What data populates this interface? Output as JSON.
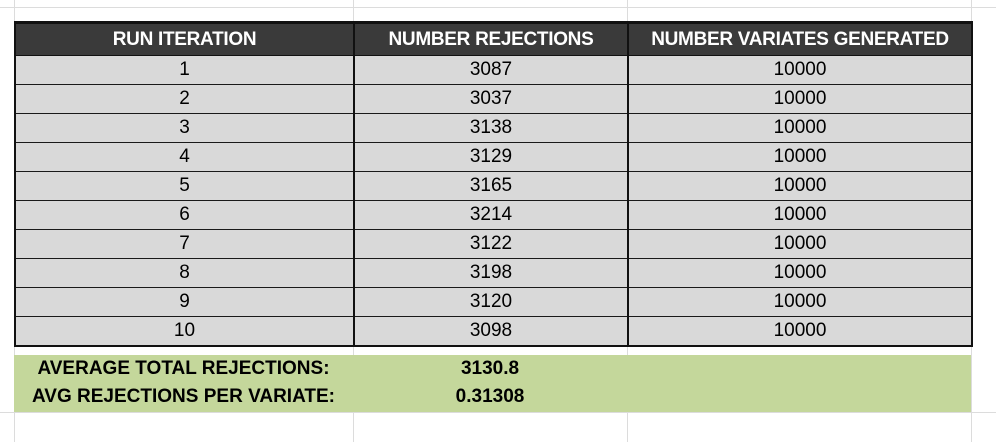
{
  "table": {
    "headers": [
      "RUN ITERATION",
      "NUMBER REJECTIONS",
      "NUMBER VARIATES GENERATED"
    ],
    "rows": [
      [
        "1",
        "3087",
        "10000"
      ],
      [
        "2",
        "3037",
        "10000"
      ],
      [
        "3",
        "3138",
        "10000"
      ],
      [
        "4",
        "3129",
        "10000"
      ],
      [
        "5",
        "3165",
        "10000"
      ],
      [
        "6",
        "3214",
        "10000"
      ],
      [
        "7",
        "3122",
        "10000"
      ],
      [
        "8",
        "3198",
        "10000"
      ],
      [
        "9",
        "3120",
        "10000"
      ],
      [
        "10",
        "3098",
        "10000"
      ]
    ]
  },
  "summary": {
    "avg_total_label": "AVERAGE TOTAL REJECTIONS:",
    "avg_total_value": "3130.8",
    "avg_per_variate_label": "AVG REJECTIONS PER VARIATE:",
    "avg_per_variate_value": "0.31308"
  },
  "colors": {
    "header_bg": "#3a3a3a",
    "cell_bg": "#d9d9d9",
    "summary_bg": "#c4d79b"
  }
}
